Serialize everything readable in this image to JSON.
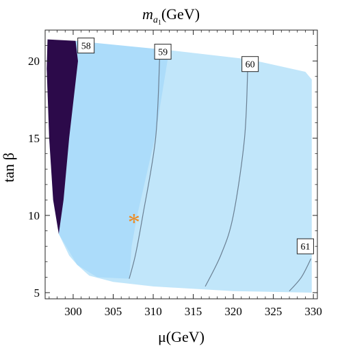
{
  "chart_data": {
    "type": "contour",
    "title_parts": {
      "base": "m",
      "sub": "a",
      "subsub": "1",
      "unit": "(GeV)"
    },
    "xlabel": "μ(GeV)",
    "ylabel": "tan β",
    "xlim": [
      296.5,
      330.5
    ],
    "ylim": [
      4.6,
      22
    ],
    "x_ticks": [
      300,
      305,
      310,
      315,
      320,
      325,
      330
    ],
    "y_ticks": [
      5,
      10,
      15,
      20
    ],
    "grid": false,
    "legend": "none",
    "region": {
      "boundary": [
        [
          296.8,
          21.4
        ],
        [
          301.2,
          21.2
        ],
        [
          312.0,
          20.7
        ],
        [
          322.0,
          20.1
        ],
        [
          329.0,
          19.3
        ],
        [
          329.8,
          18.8
        ],
        [
          329.8,
          5.0
        ],
        [
          320.0,
          5.1
        ],
        [
          310.0,
          5.4
        ],
        [
          305.0,
          5.7
        ],
        [
          302.0,
          6.1
        ],
        [
          300.5,
          6.8
        ],
        [
          299.5,
          7.4
        ],
        [
          298.2,
          8.8
        ],
        [
          297.5,
          11.0
        ],
        [
          297.0,
          15.0
        ],
        [
          296.7,
          19.5
        ]
      ]
    },
    "dark_region": {
      "boundary": [
        [
          296.8,
          21.4
        ],
        [
          300.3,
          21.3
        ],
        [
          300.6,
          20.0
        ],
        [
          299.5,
          15.0
        ],
        [
          298.8,
          11.0
        ],
        [
          298.2,
          8.8
        ],
        [
          297.5,
          11.0
        ],
        [
          297.0,
          15.0
        ],
        [
          296.7,
          19.5
        ]
      ]
    },
    "mid_band": {
      "boundary": [
        [
          300.3,
          21.3
        ],
        [
          312.0,
          20.7
        ],
        [
          310.2,
          15.0
        ],
        [
          308.0,
          10.0
        ],
        [
          307.3,
          8.0
        ],
        [
          307.0,
          5.9
        ],
        [
          303.0,
          6.0
        ],
        [
          300.5,
          6.8
        ],
        [
          298.2,
          8.8
        ],
        [
          298.8,
          11.0
        ],
        [
          299.5,
          15.0
        ],
        [
          300.6,
          20.0
        ]
      ]
    },
    "contours": [
      {
        "label": "58",
        "label_at": [
          301.6,
          21.0
        ],
        "points": []
      },
      {
        "label": "59",
        "label_at": [
          311.2,
          20.6
        ],
        "points": [
          [
            310.8,
            20.2
          ],
          [
            310.3,
            15.0
          ],
          [
            308.7,
            10.0
          ],
          [
            307.8,
            7.5
          ],
          [
            307.0,
            5.9
          ]
        ]
      },
      {
        "label": "60",
        "label_at": [
          322.1,
          19.8
        ],
        "points": [
          [
            321.8,
            19.6
          ],
          [
            321.4,
            15.0
          ],
          [
            320.0,
            10.0
          ],
          [
            318.5,
            7.5
          ],
          [
            316.5,
            5.4
          ]
        ]
      },
      {
        "label": "61",
        "label_at": [
          329.0,
          8.0
        ],
        "points": [
          [
            329.7,
            7.2
          ],
          [
            328.5,
            6.0
          ],
          [
            327.0,
            5.1
          ]
        ]
      }
    ],
    "marker": {
      "x": 307.6,
      "y": 9.8,
      "symbol": "*"
    },
    "colors": {
      "region": "#c1e6fa",
      "mid_band": "#acdcfa",
      "dark": "#2c0a4a",
      "contour": "#6a7f92",
      "marker": "#ee8a1e"
    }
  }
}
